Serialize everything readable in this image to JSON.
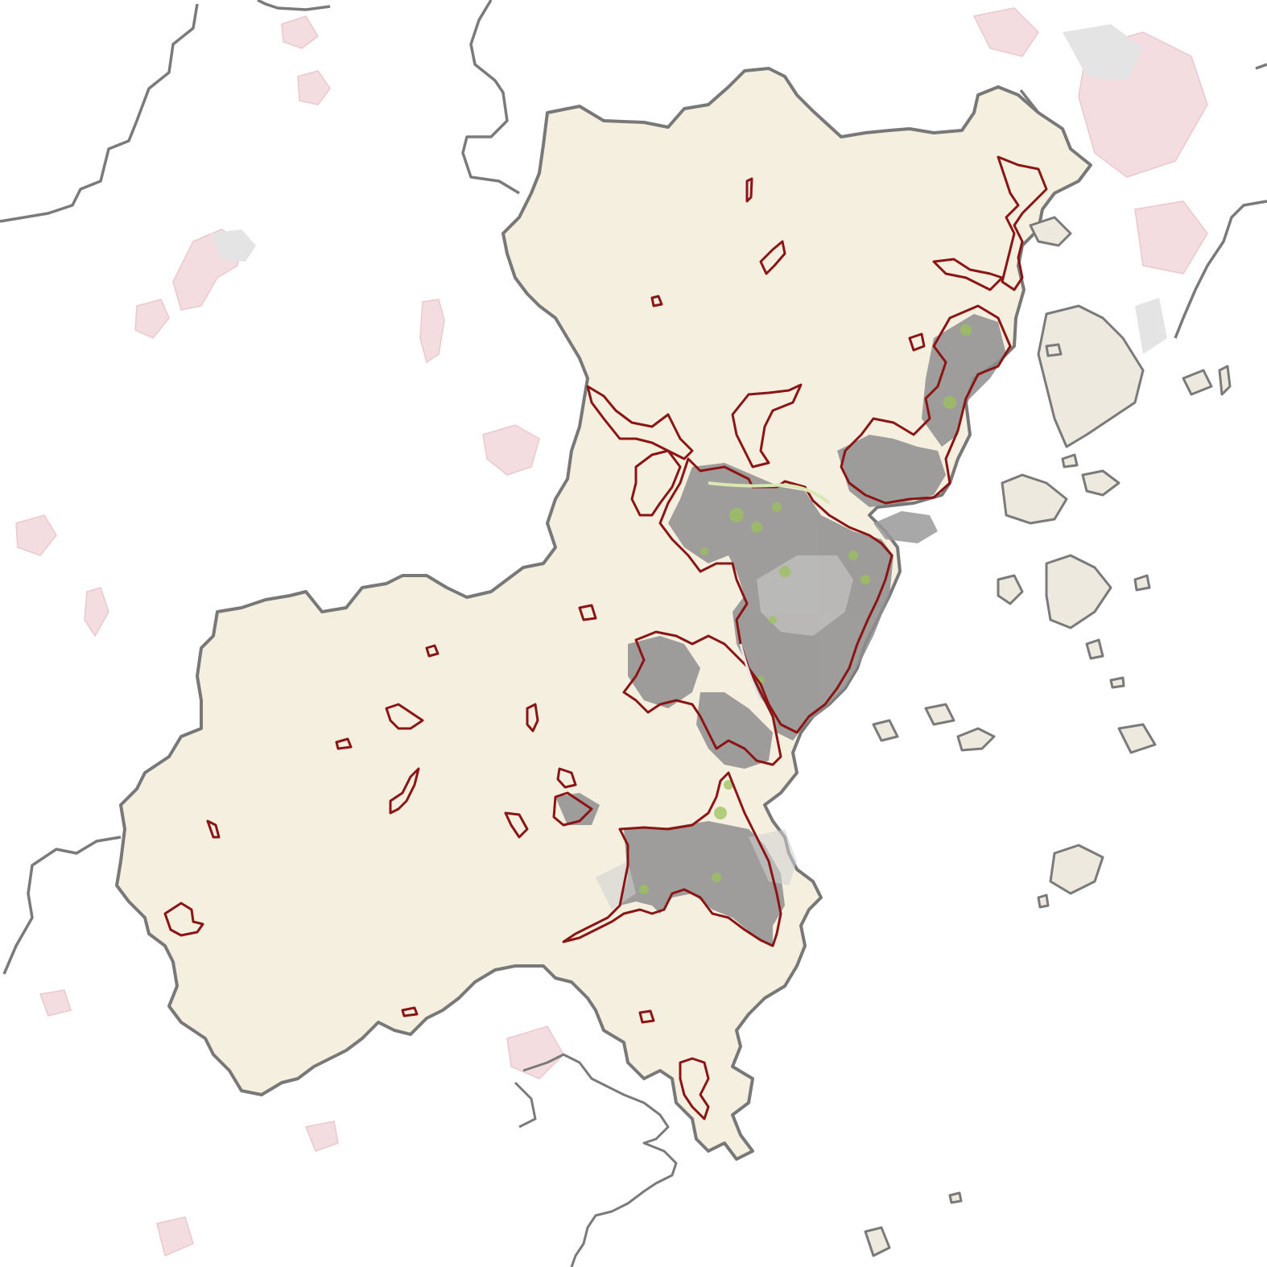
{
  "map": {
    "colors": {
      "background": "#ffffff",
      "region_fill": "#f5efe0",
      "boundary": "#7a7a7a",
      "urban_outline": "#8b1515",
      "urban_fill": "#8e8e8e",
      "green_space": "#9cc25a",
      "faint_settlement": "#f0d6da",
      "island_fill": "#e9e5dc"
    },
    "layers": [
      "admin-boundaries",
      "study-region",
      "built-up-areas",
      "urban-clusters",
      "green-space",
      "islands"
    ],
    "labels": []
  }
}
